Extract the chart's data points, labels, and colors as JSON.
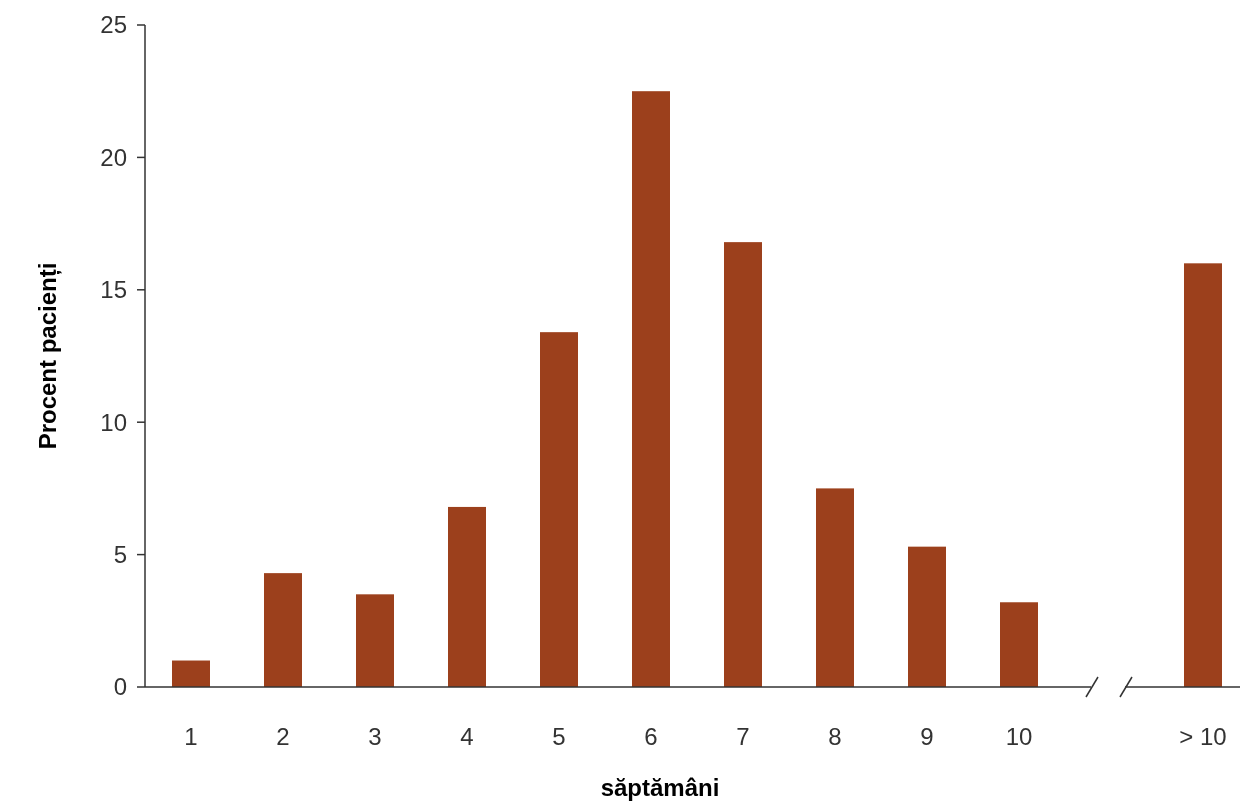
{
  "chart_data": {
    "type": "bar",
    "xlabel": "săptămâni",
    "ylabel": "Procent pacienți",
    "categories": [
      "1",
      "2",
      "3",
      "4",
      "5",
      "6",
      "7",
      "8",
      "9",
      "10",
      null,
      "> 10"
    ],
    "values": [
      1.0,
      4.3,
      3.5,
      6.8,
      13.4,
      22.5,
      16.8,
      7.5,
      5.3,
      3.2,
      null,
      16.0
    ],
    "color": "#9c401c",
    "ylim": [
      0,
      25
    ],
    "yticks": [
      0,
      5,
      10,
      15,
      20,
      25
    ],
    "grid": false
  }
}
